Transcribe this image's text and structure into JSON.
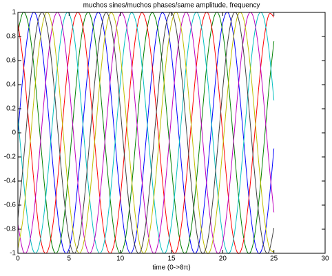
{
  "chart_data": {
    "type": "line",
    "title": "muchos sines/muchos phases/same amplitude, frequency",
    "x_label": "time (0->8π)",
    "xlim": [
      0,
      30
    ],
    "xticks": [
      0,
      5,
      10,
      15,
      20,
      25,
      30
    ],
    "ylim": [
      -1,
      1
    ],
    "yticks": [
      -1,
      -0.8,
      -0.6,
      -0.4,
      -0.2,
      0,
      0.2,
      0.4,
      0.6,
      0.8,
      1
    ],
    "x": [
      0,
      0.5,
      1,
      1.5,
      2,
      2.5,
      3,
      3.5,
      4,
      4.5,
      5,
      5.5,
      6,
      6.5,
      7,
      7.5,
      8,
      8.5,
      9,
      9.5,
      10,
      10.5,
      11,
      11.5,
      12,
      12.5,
      13,
      13.5,
      14,
      14.5,
      15,
      15.5,
      16,
      16.5,
      17,
      17.5,
      18,
      18.5,
      19,
      19.5,
      20,
      20.5,
      21,
      21.5,
      22,
      22.5,
      23,
      23.5,
      24,
      24.5,
      25
    ],
    "series": [
      {
        "color": "#0000ff",
        "values": [
          0,
          0.48,
          0.84,
          1,
          0.91,
          0.6,
          0.14,
          -0.35,
          -0.76,
          -0.98,
          -0.96,
          -0.71,
          -0.28,
          0.22,
          0.66,
          0.94,
          0.99,
          0.8,
          0.41,
          -0.08,
          -0.54,
          -0.88,
          -1,
          -0.88,
          -0.54,
          -0.07,
          0.42,
          0.8,
          0.99,
          0.93,
          0.65,
          0.2,
          -0.29,
          -0.71,
          -0.96,
          -0.98,
          -0.75,
          -0.34,
          0.15,
          0.61,
          0.91,
          1,
          0.84,
          0.47,
          -0.01,
          -0.49,
          -0.85,
          -1,
          -0.91,
          -0.59,
          -0.13
        ]
      },
      {
        "color": "#008000",
        "values": [
          0.84,
          1,
          0.91,
          0.6,
          0.14,
          -0.35,
          -0.76,
          -0.98,
          -0.96,
          -0.71,
          -0.28,
          0.22,
          0.66,
          0.94,
          0.99,
          0.8,
          0.41,
          -0.08,
          -0.54,
          -0.88,
          -1,
          -0.88,
          -0.54,
          -0.07,
          0.42,
          0.8,
          0.99,
          0.93,
          0.65,
          0.2,
          -0.29,
          -0.71,
          -0.96,
          -0.98,
          -0.75,
          -0.34,
          0.15,
          0.61,
          0.91,
          1,
          0.84,
          0.47,
          -0.01,
          -0.49,
          -0.85,
          -1,
          -0.91,
          -0.59,
          -0.13,
          0.36,
          0.76
        ]
      },
      {
        "color": "#ff0000",
        "values": [
          0.91,
          0.6,
          0.14,
          -0.35,
          -0.76,
          -0.98,
          -0.96,
          -0.71,
          -0.28,
          0.22,
          0.66,
          0.94,
          0.99,
          0.8,
          0.41,
          -0.08,
          -0.54,
          -0.88,
          -1,
          -0.88,
          -0.54,
          -0.07,
          0.42,
          0.8,
          0.99,
          0.93,
          0.65,
          0.2,
          -0.29,
          -0.71,
          -0.96,
          -0.98,
          -0.75,
          -0.34,
          0.15,
          0.61,
          0.91,
          1,
          0.84,
          0.47,
          -0.01,
          -0.49,
          -0.85,
          -1,
          -0.91,
          -0.59,
          -0.13,
          0.36,
          0.76,
          0.98,
          0.96
        ]
      },
      {
        "color": "#00bfbf",
        "values": [
          0.14,
          -0.35,
          -0.76,
          -0.98,
          -0.96,
          -0.71,
          -0.28,
          0.22,
          0.66,
          0.94,
          0.99,
          0.8,
          0.41,
          -0.08,
          -0.54,
          -0.88,
          -1,
          -0.88,
          -0.54,
          -0.07,
          0.42,
          0.8,
          0.99,
          0.93,
          0.65,
          0.2,
          -0.29,
          -0.71,
          -0.96,
          -0.98,
          -0.75,
          -0.34,
          0.15,
          0.61,
          0.91,
          1,
          0.84,
          0.47,
          -0.01,
          -0.49,
          -0.85,
          -1,
          -0.91,
          -0.59,
          -0.13,
          0.36,
          0.76,
          0.98,
          0.96,
          0.7,
          0.27
        ]
      },
      {
        "color": "#bf00bf",
        "values": [
          -0.76,
          -0.98,
          -0.96,
          -0.71,
          -0.28,
          0.22,
          0.66,
          0.94,
          0.99,
          0.8,
          0.41,
          -0.08,
          -0.54,
          -0.88,
          -1,
          -0.88,
          -0.54,
          -0.07,
          0.42,
          0.8,
          0.99,
          0.93,
          0.65,
          0.2,
          -0.29,
          -0.71,
          -0.96,
          -0.98,
          -0.75,
          -0.34,
          0.15,
          0.61,
          0.91,
          1,
          0.84,
          0.47,
          -0.01,
          -0.49,
          -0.85,
          -1,
          -0.91,
          -0.59,
          -0.13,
          0.36,
          0.76,
          0.98,
          0.96,
          0.7,
          0.27,
          -0.23,
          -0.66
        ]
      },
      {
        "color": "#bfbf00",
        "values": [
          -0.96,
          -0.71,
          -0.28,
          0.22,
          0.66,
          0.94,
          0.99,
          0.8,
          0.41,
          -0.08,
          -0.54,
          -0.88,
          -1,
          -0.88,
          -0.54,
          -0.07,
          0.42,
          0.8,
          0.99,
          0.93,
          0.65,
          0.2,
          -0.29,
          -0.71,
          -0.96,
          -0.98,
          -0.75,
          -0.34,
          0.15,
          0.61,
          0.91,
          1,
          0.84,
          0.47,
          -0.01,
          -0.49,
          -0.85,
          -1,
          -0.91,
          -0.59,
          -0.13,
          0.36,
          0.76,
          0.98,
          0.96,
          0.7,
          0.27,
          -0.23,
          -0.66,
          -0.94,
          -0.99
        ]
      },
      {
        "color": "#404040",
        "values": [
          -0.71,
          -0.28,
          0.22,
          0.66,
          0.94,
          0.99,
          0.8,
          0.41,
          -0.08,
          -0.54,
          -0.88,
          -1,
          -0.88,
          -0.54,
          -0.07,
          0.42,
          0.8,
          0.99,
          0.93,
          0.65,
          0.2,
          -0.29,
          -0.71,
          -0.96,
          -0.98,
          -0.75,
          -0.34,
          0.15,
          0.61,
          0.91,
          1,
          0.84,
          0.47,
          -0.01,
          -0.49,
          -0.85,
          -1,
          -0.91,
          -0.59,
          -0.13,
          0.36,
          0.76,
          0.98,
          0.96,
          0.7,
          0.27,
          -0.23,
          -0.66,
          -0.94,
          -0.99,
          -0.79
        ]
      }
    ]
  }
}
